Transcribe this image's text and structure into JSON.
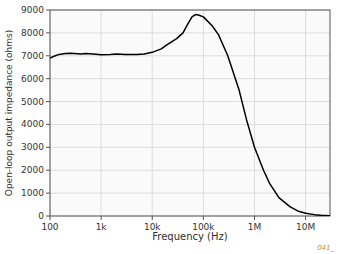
{
  "chart_data": {
    "type": "line",
    "x_label": "Frequency (Hz)",
    "y_label": "Open-loop output impedance (ohms)",
    "x": [
      100,
      120,
      150,
      200,
      250,
      300,
      400,
      500,
      700,
      1000,
      1500,
      2000,
      3000,
      5000,
      7000,
      10000,
      15000,
      20000,
      30000,
      40000,
      50000,
      60000,
      70000,
      80000,
      100000,
      150000,
      200000,
      300000,
      500000,
      700000,
      1000000,
      1500000,
      2000000,
      3000000,
      5000000,
      7000000,
      10000000,
      15000000,
      20000000,
      30000000
    ],
    "values": [
      6900,
      6980,
      7060,
      7100,
      7110,
      7100,
      7080,
      7100,
      7080,
      7050,
      7060,
      7080,
      7060,
      7060,
      7080,
      7150,
      7300,
      7500,
      7750,
      8000,
      8400,
      8700,
      8800,
      8780,
      8700,
      8300,
      7900,
      7000,
      5500,
      4200,
      3000,
      2000,
      1400,
      800,
      400,
      220,
      120,
      60,
      35,
      15
    ],
    "color": "#000000",
    "log": "x",
    "xlim": [
      100,
      30000000
    ],
    "xticks": [
      100,
      {
        "value": 1000,
        "label": "1k"
      },
      {
        "value": 10000,
        "label": "10k"
      },
      {
        "value": 100000,
        "label": "100k"
      },
      {
        "value": 1000000,
        "label": "1M"
      },
      {
        "value": 10000000,
        "label": "10M"
      }
    ],
    "ylim": [
      0,
      9000
    ],
    "yticks": [
      0,
      1000,
      2000,
      3000,
      4000,
      5000,
      6000,
      7000,
      8000,
      9000
    ],
    "grid": true,
    "annotations": [
      "041_"
    ]
  }
}
